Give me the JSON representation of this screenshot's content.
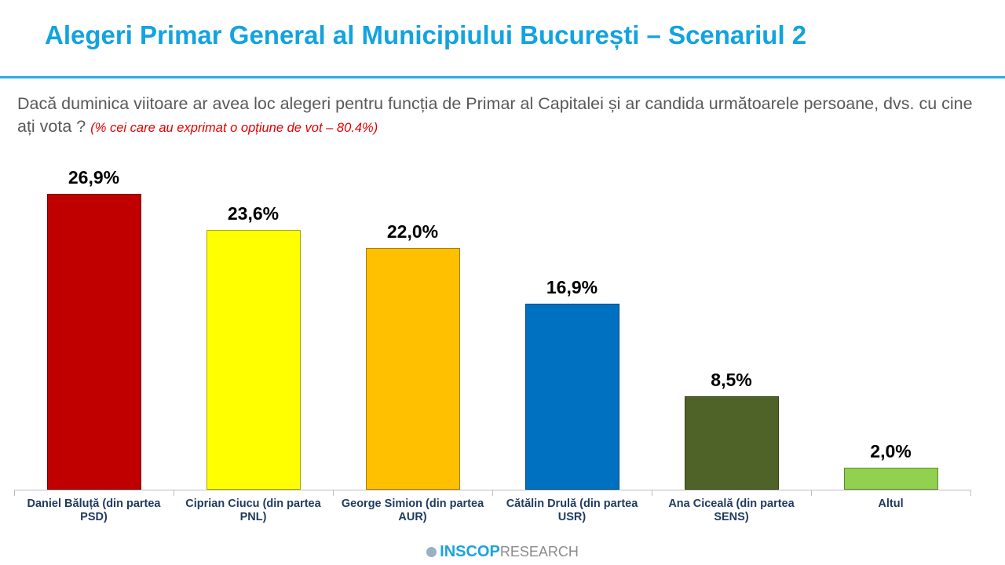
{
  "chart_data": {
    "type": "bar",
    "title": "Alegeri Primar General al Municipiului București – Scenariul 2",
    "subtitle": "Dacă duminica viitoare ar avea loc alegeri pentru funcția de Primar al Capitalei și ar candida următoarele persoane, dvs. cu cine ați vota ?",
    "note": "(% cei care au exprimat o opțiune de vot – 80.4%)",
    "categories": [
      "Daniel Băluță (din partea PSD)",
      "Ciprian Ciucu (din partea PNL)",
      "George Simion (din partea AUR)",
      "Cătălin Drulă (din partea USR)",
      "Ana Ciceală (din partea SENS)",
      "Altul"
    ],
    "values": [
      26.9,
      23.6,
      22.0,
      16.9,
      8.5,
      2.0
    ],
    "value_labels": [
      "26,9%",
      "23,6%",
      "22,0%",
      "16,9%",
      "8,5%",
      "2,0%"
    ],
    "colors": [
      "#c00000",
      "#ffff00",
      "#ffc000",
      "#0070c0",
      "#4f6228",
      "#92d050"
    ]
  },
  "brand": {
    "name": "INSCOP",
    "suffix": "RESEARCH"
  }
}
